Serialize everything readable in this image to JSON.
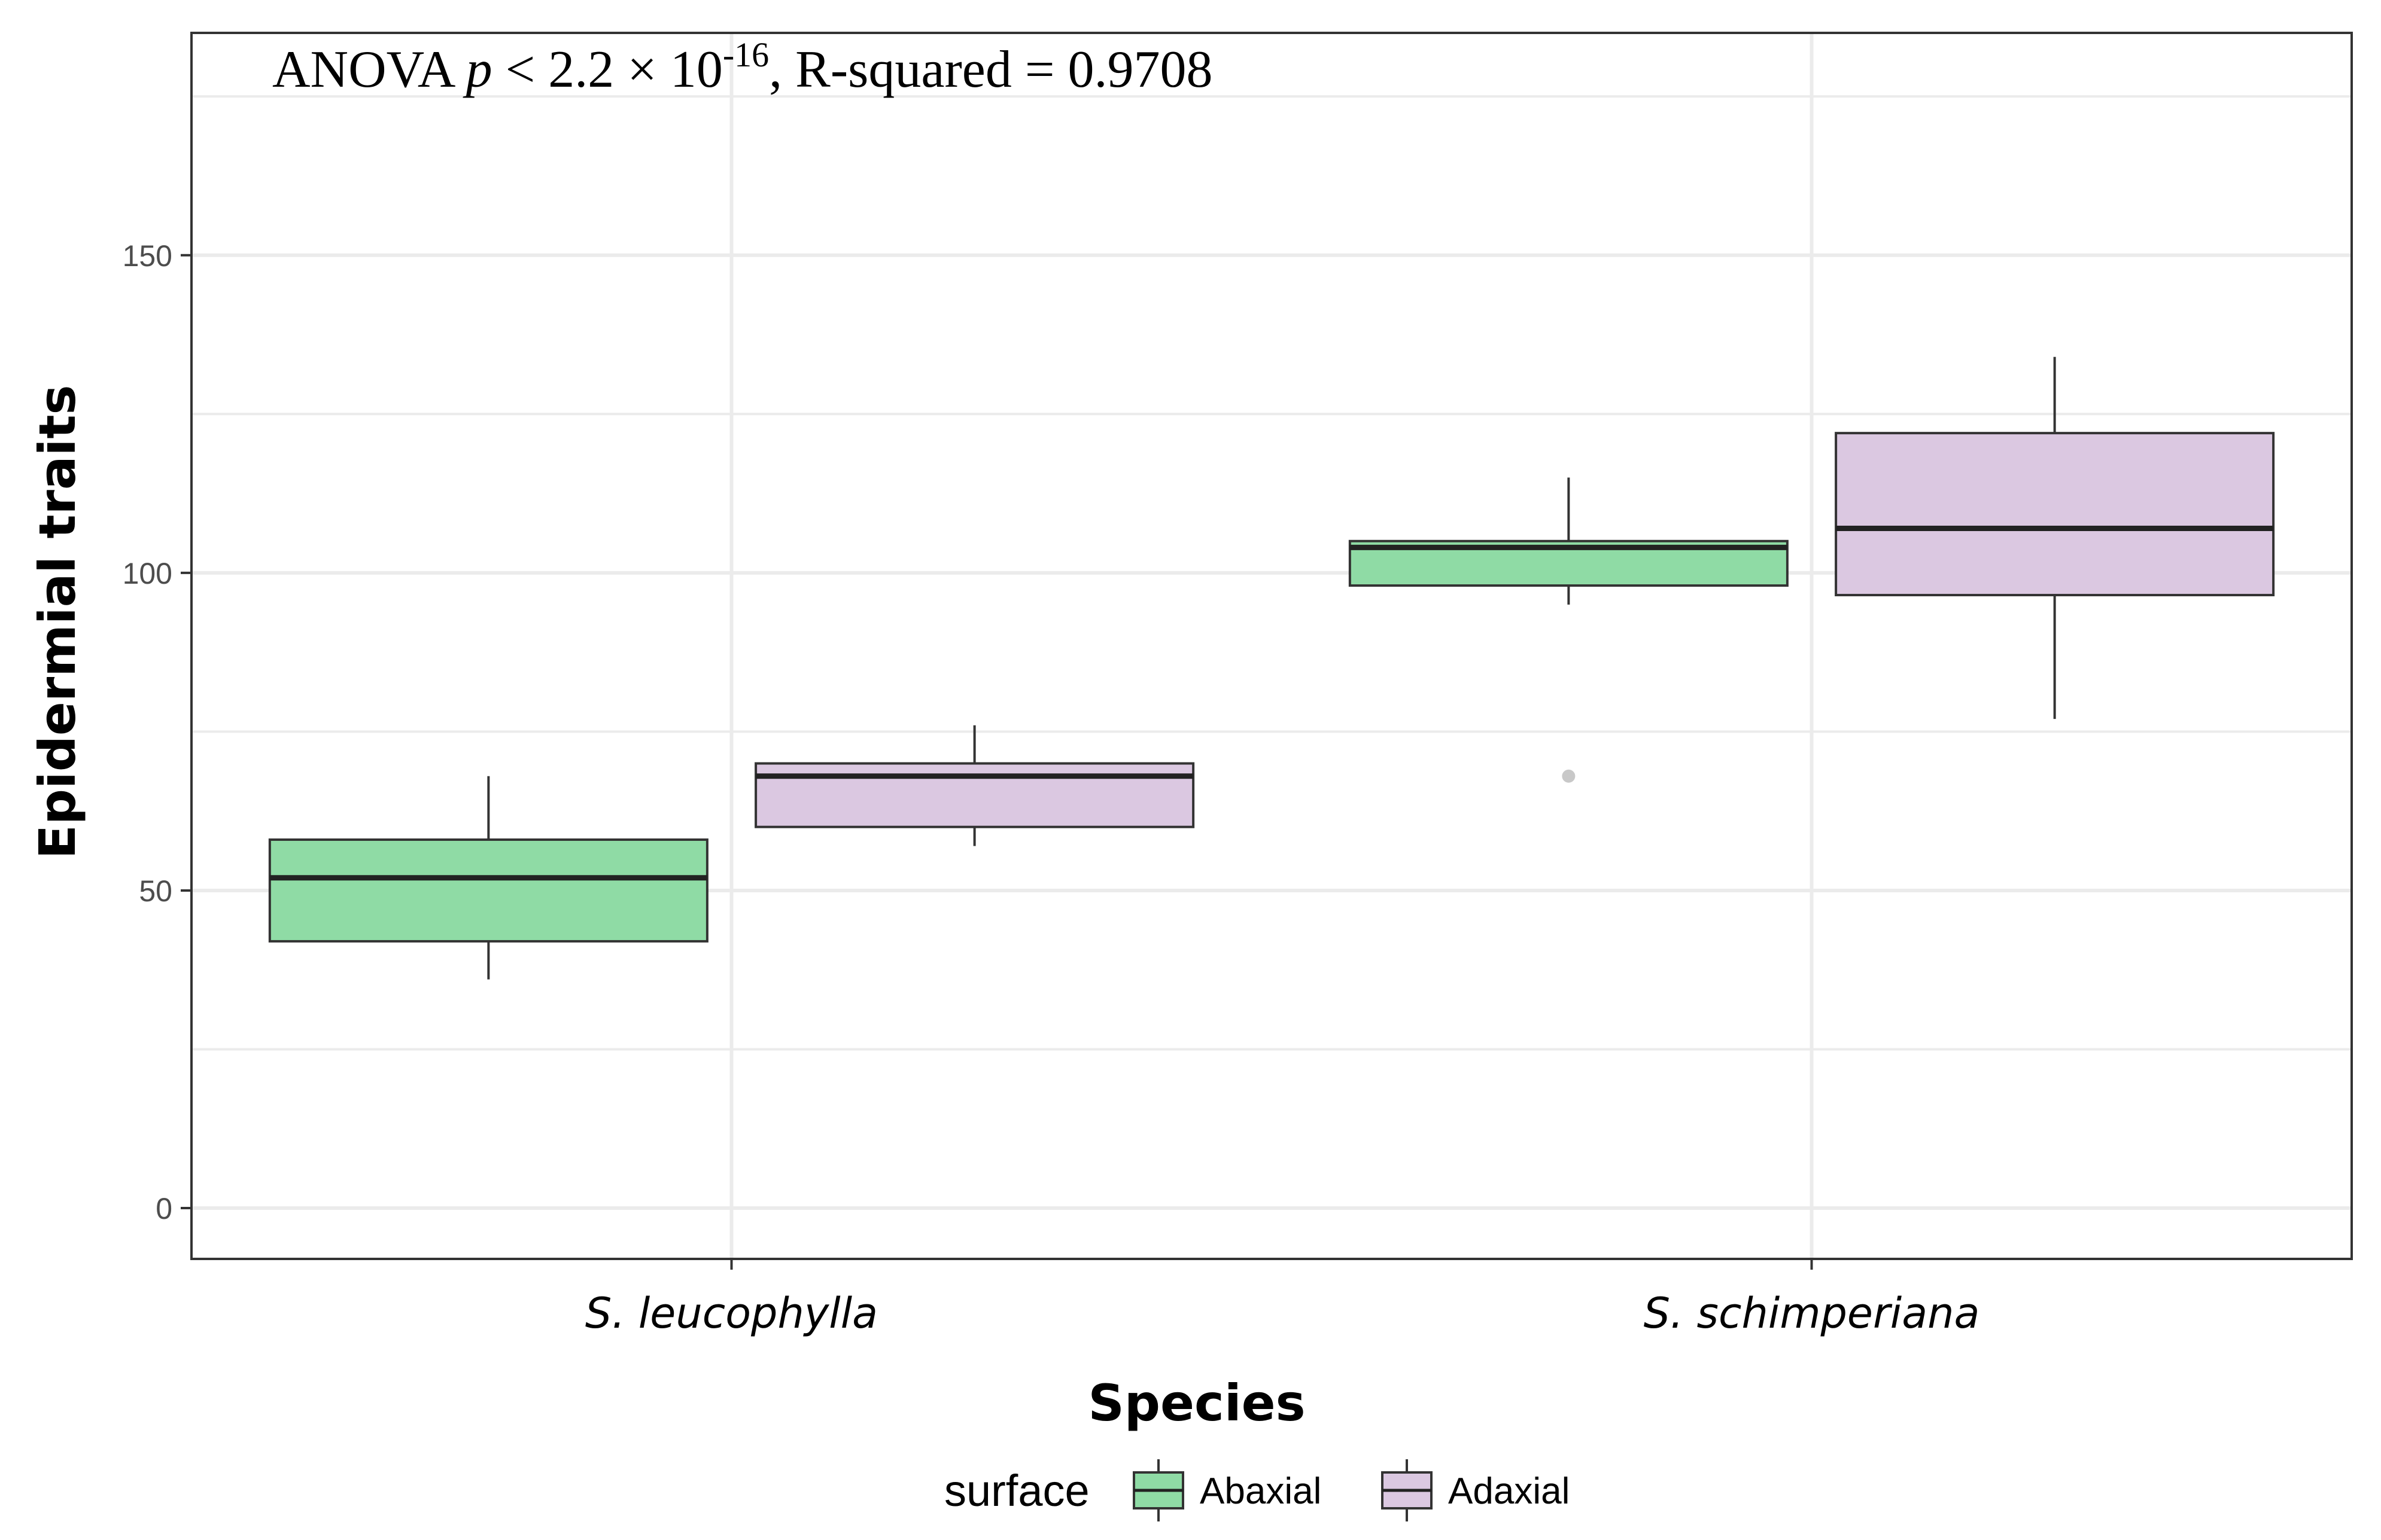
{
  "chart_data": {
    "type": "boxplot",
    "annotation": {
      "prefix": "ANOVA ",
      "p_symbol": "p",
      "relation": " < 2.2 × 10",
      "exponent": "-16",
      "suffix": ", R-squared = 0.9708"
    },
    "xlabel": "Species",
    "ylabel": "Epidermial traits",
    "ylim": [
      -8,
      185
    ],
    "yticks": [
      0,
      50,
      100,
      150
    ],
    "ytick_labels": [
      "0",
      "50",
      "100",
      "150"
    ],
    "categories": [
      "S. leucophylla",
      "S. schimperiana"
    ],
    "legend": {
      "title": "surface",
      "items": [
        {
          "label": "Abaxial",
          "color": "#8fdba5"
        },
        {
          "label": "Adaxial",
          "color": "#dbc8e1"
        }
      ]
    },
    "series": [
      {
        "name": "Abaxial",
        "color": "#8fdba5",
        "boxes": [
          {
            "category": "S. leucophylla",
            "min": 36,
            "q1": 42,
            "median": 52,
            "q3": 58,
            "max": 68,
            "outliers": []
          },
          {
            "category": "S. schimperiana",
            "min": 95,
            "q1": 98,
            "median": 104,
            "q3": 105,
            "max": 115,
            "outliers": [
              68
            ]
          }
        ]
      },
      {
        "name": "Adaxial",
        "color": "#dbc8e1",
        "boxes": [
          {
            "category": "S. leucophylla",
            "min": 57,
            "q1": 60,
            "median": 68,
            "q3": 70,
            "max": 76,
            "outliers": []
          },
          {
            "category": "S. schimperiana",
            "min": 77,
            "q1": 96.5,
            "median": 107,
            "q3": 122,
            "max": 134,
            "outliers": []
          }
        ]
      }
    ]
  }
}
